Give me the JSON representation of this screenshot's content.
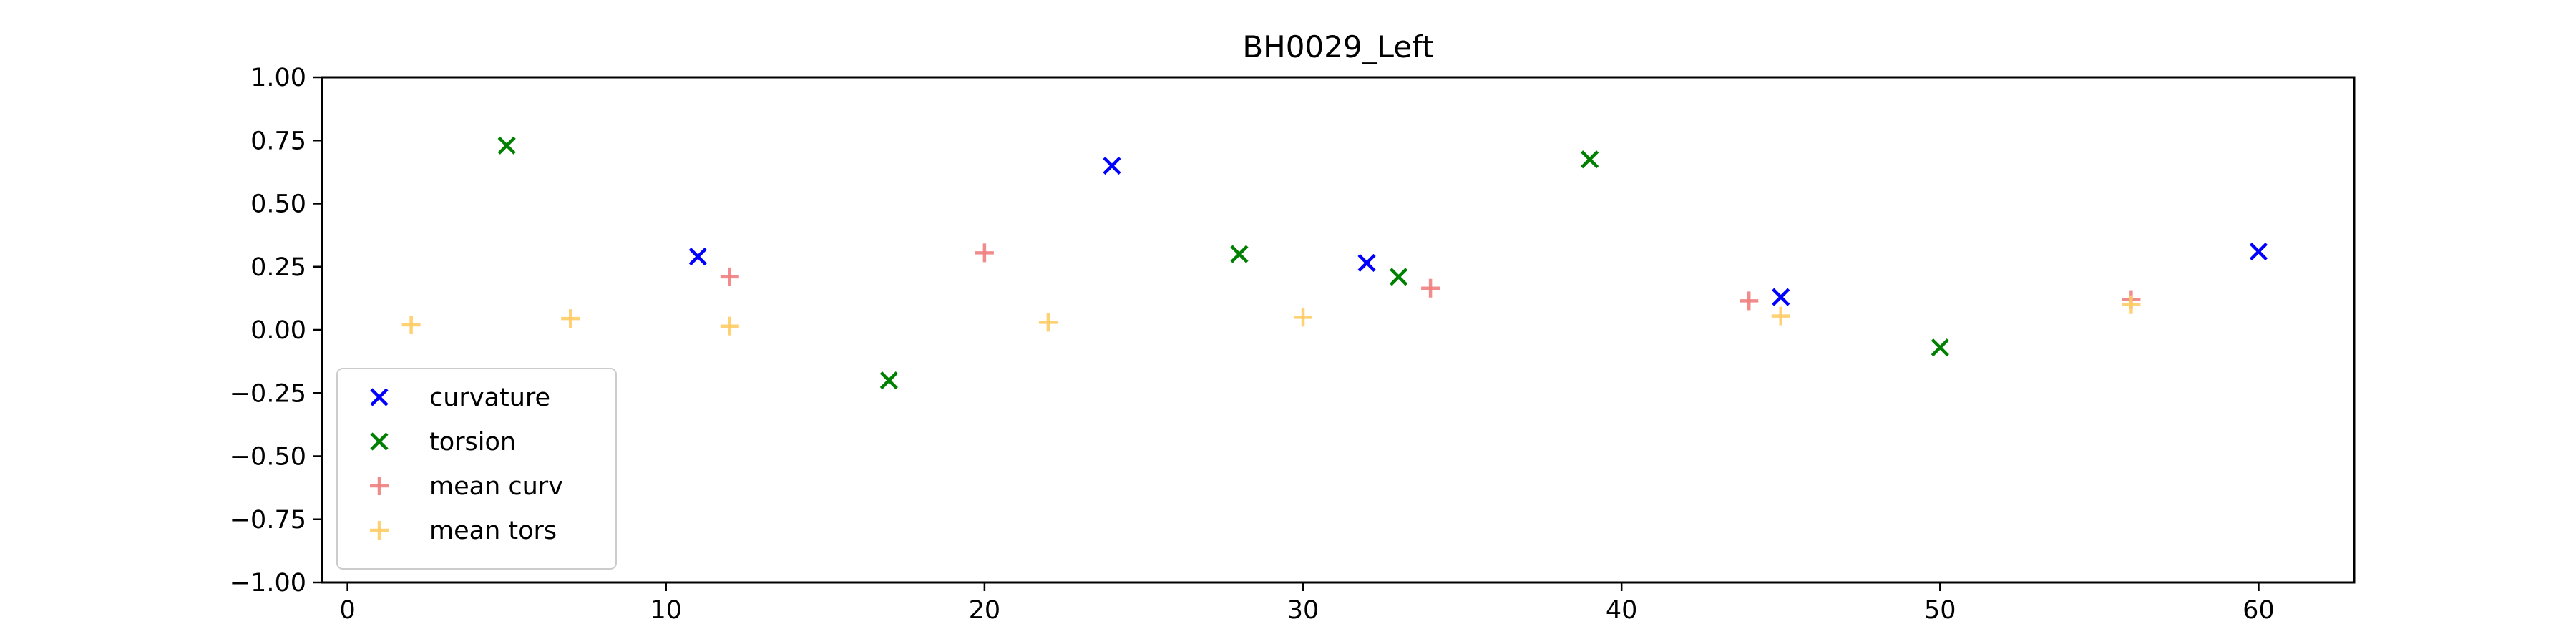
{
  "chart_data": {
    "type": "scatter",
    "title": "BH0029_Left",
    "xlabel": "",
    "ylabel": "",
    "xlim": [
      -0.8,
      63
    ],
    "ylim": [
      -1.0,
      1.0
    ],
    "x_ticks": [
      0,
      10,
      20,
      30,
      40,
      50,
      60
    ],
    "x_tick_labels": [
      "0",
      "10",
      "20",
      "30",
      "40",
      "50",
      "60"
    ],
    "y_ticks": [
      1.0,
      0.75,
      0.5,
      0.25,
      0.0,
      -0.25,
      -0.5,
      -0.75,
      -1.0
    ],
    "y_tick_labels": [
      "1.00",
      "0.75",
      "0.50",
      "0.25",
      "0.00",
      "−0.25",
      "−0.50",
      "−0.75",
      "−1.00"
    ],
    "grid": false,
    "legend_position": "lower-left",
    "series": [
      {
        "name": "curvature",
        "marker": "x",
        "color": "#0000ff",
        "points": [
          [
            11,
            0.29
          ],
          [
            24,
            0.65
          ],
          [
            32,
            0.265
          ],
          [
            45,
            0.13
          ],
          [
            60,
            0.31
          ]
        ]
      },
      {
        "name": "torsion",
        "marker": "x",
        "color": "#008000",
        "points": [
          [
            5,
            0.73
          ],
          [
            17,
            -0.2
          ],
          [
            28,
            0.3
          ],
          [
            33,
            0.21
          ],
          [
            39,
            0.675
          ],
          [
            50,
            -0.07
          ]
        ]
      },
      {
        "name": "mean curv",
        "marker": "+",
        "color": "#f08080",
        "points": [
          [
            12,
            0.21
          ],
          [
            20,
            0.305
          ],
          [
            34,
            0.165
          ],
          [
            44,
            0.115
          ],
          [
            56,
            0.12
          ]
        ]
      },
      {
        "name": "mean tors",
        "marker": "+",
        "color": "#ffcc66",
        "points": [
          [
            2,
            0.02
          ],
          [
            7,
            0.045
          ],
          [
            12,
            0.015
          ],
          [
            22,
            0.03
          ],
          [
            30,
            0.05
          ],
          [
            45,
            0.055
          ],
          [
            56,
            0.1
          ]
        ]
      }
    ]
  }
}
